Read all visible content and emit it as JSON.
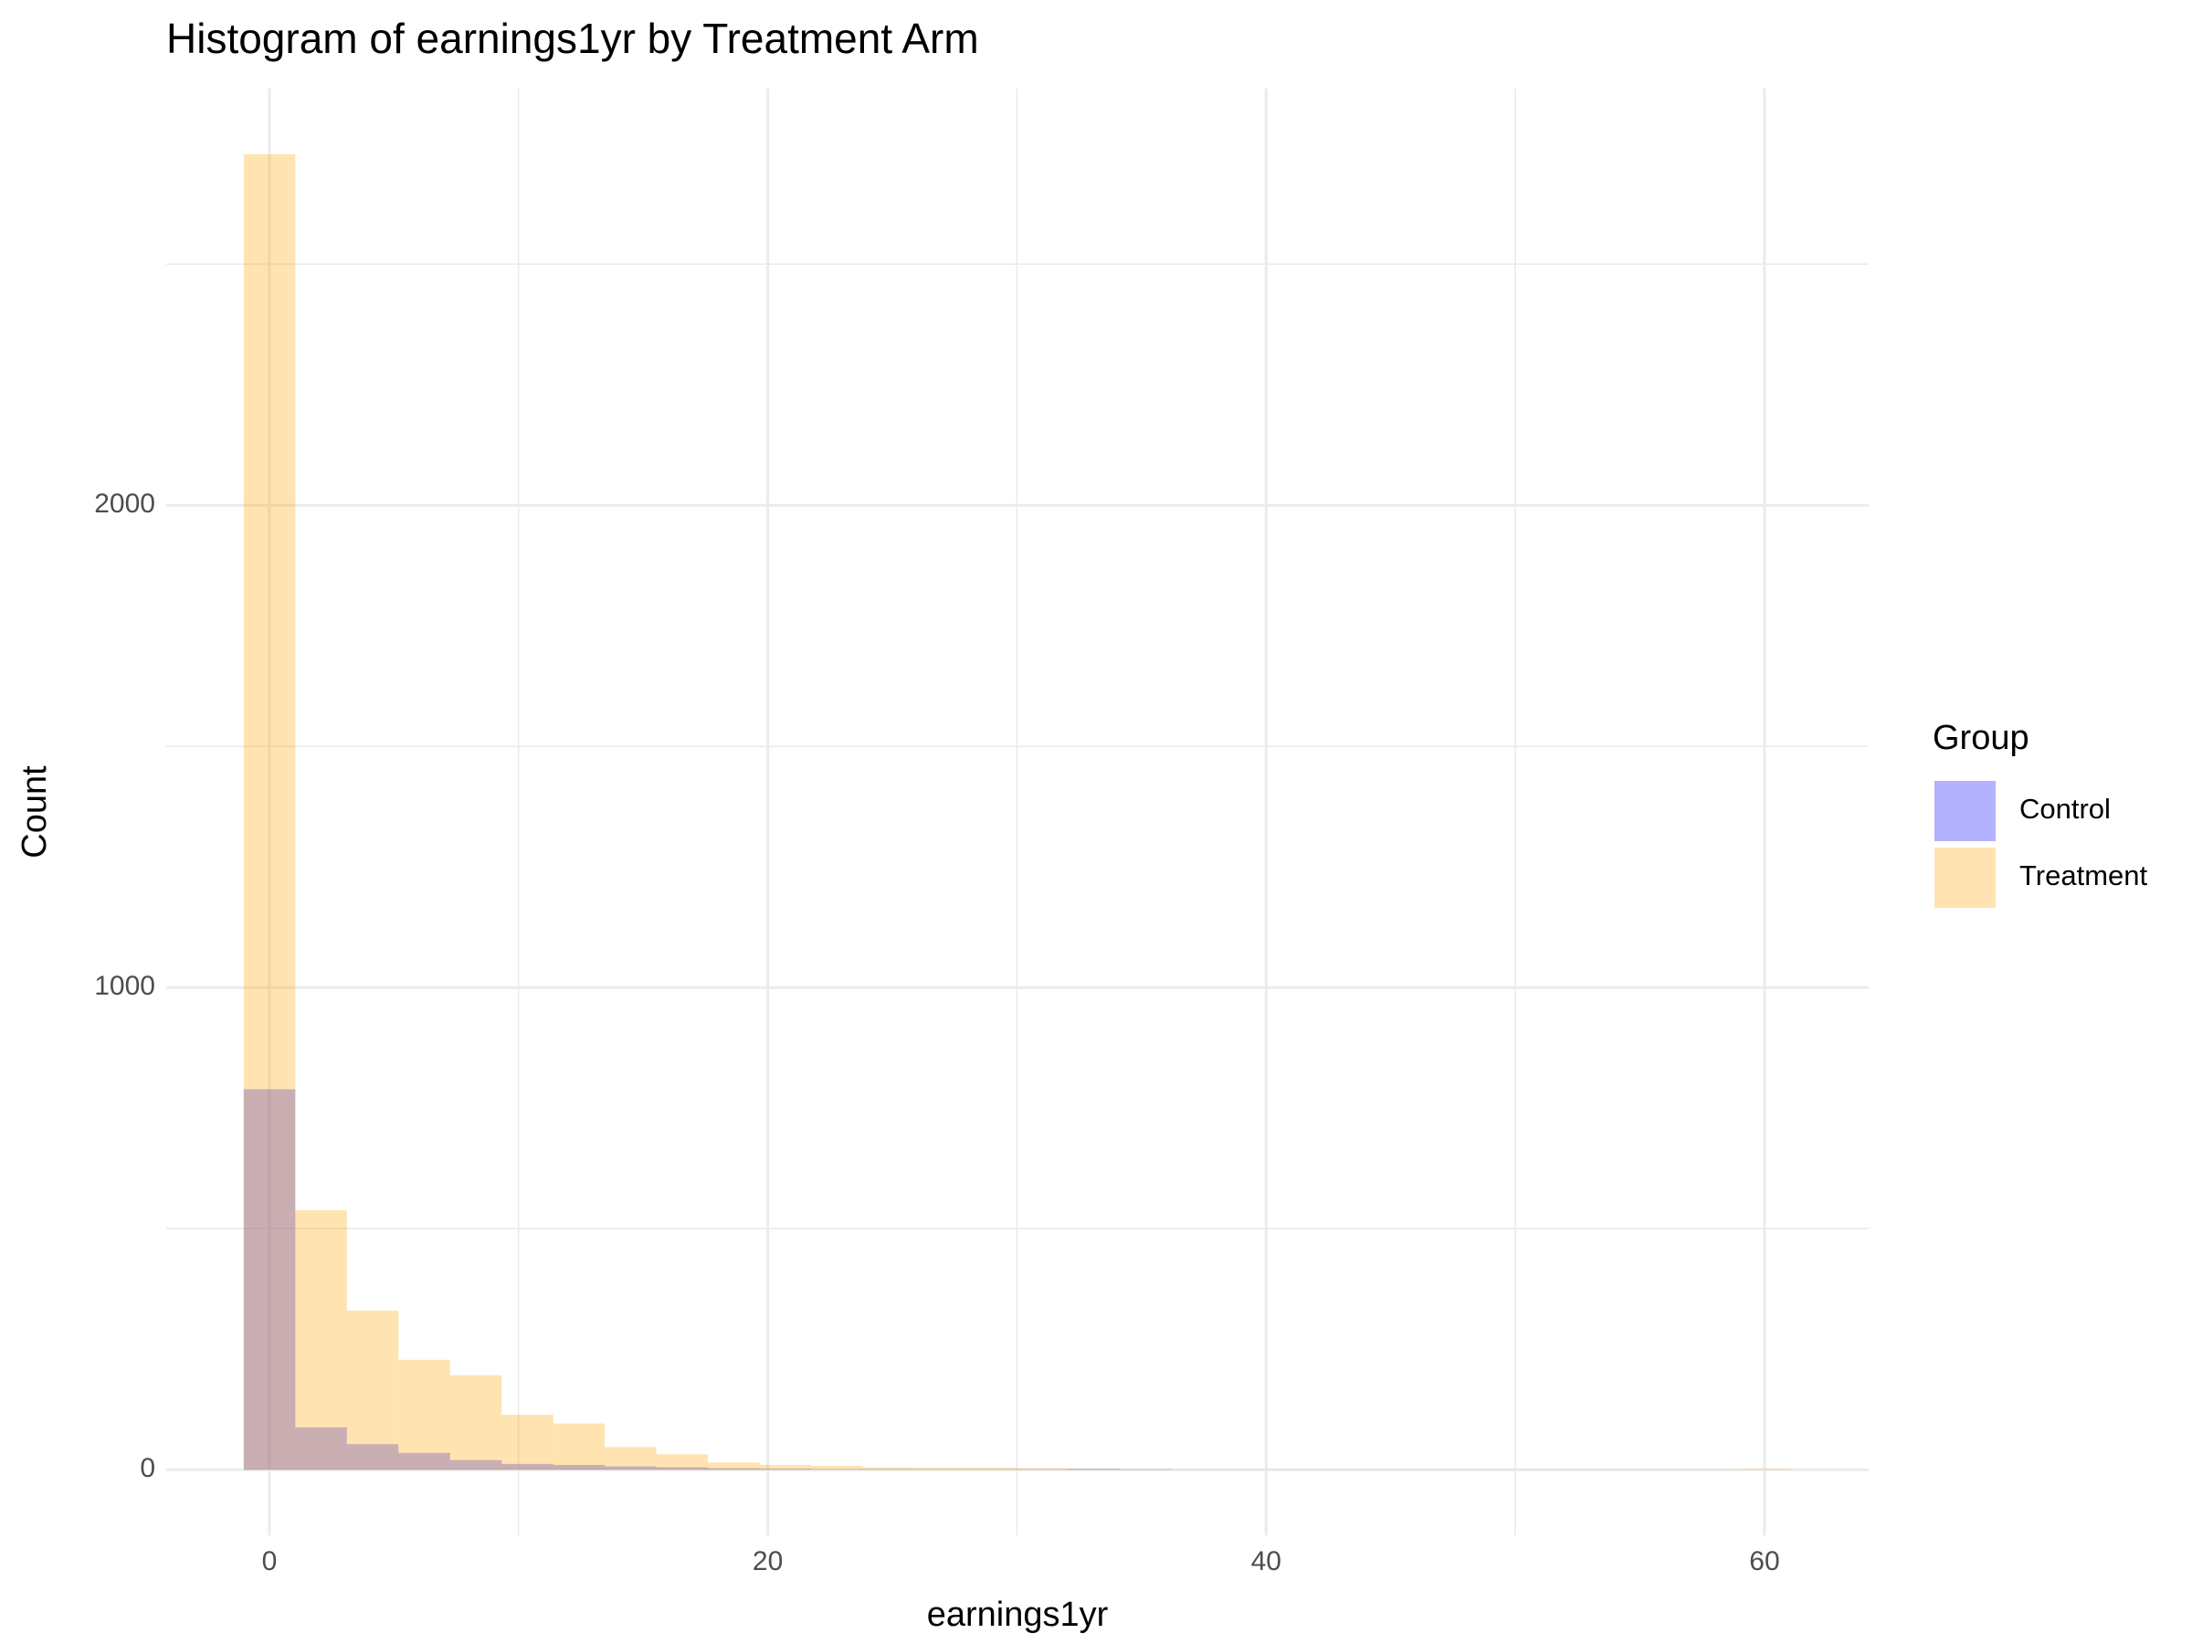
{
  "chart_data": {
    "type": "histogram",
    "title": "Histogram of earnings1yr by Treatment Arm",
    "x_label": "earnings1yr",
    "y_label": "Count",
    "legend_title": "Group",
    "legend_position": "right",
    "bins": [
      -1.03,
      1.04,
      3.11,
      5.18,
      7.25,
      9.32,
      11.39,
      13.46,
      15.53,
      17.6,
      19.67,
      21.74,
      23.81,
      25.88,
      27.95,
      30.02,
      32.09,
      34.16,
      36.23,
      38.3,
      40.37,
      42.44,
      44.51,
      46.58,
      48.65,
      50.72,
      52.79,
      54.86,
      56.93,
      59,
      61.07
    ],
    "series": [
      {
        "name": "Control",
        "color": "#0000ff",
        "opacity": 0.3,
        "values": [
          789,
          88,
          53,
          35,
          20,
          12,
          10,
          7,
          5,
          3,
          2,
          1,
          1,
          1,
          1,
          1,
          2,
          1,
          0,
          0,
          0,
          0,
          0,
          0,
          0,
          0,
          0,
          0,
          0,
          0
        ]
      },
      {
        "name": "Treatment",
        "color": "#ffa500",
        "opacity": 0.3,
        "values": [
          2728,
          538,
          330,
          228,
          196,
          114,
          96,
          47,
          32,
          15,
          10,
          8,
          5,
          4,
          4,
          3,
          2,
          1,
          1,
          1,
          1,
          1,
          1,
          1,
          1,
          1,
          1,
          1,
          1,
          2
        ]
      }
    ],
    "xlim": [
      -4.14,
      64.18
    ],
    "xticks": [
      0,
      20,
      40,
      60
    ],
    "x_minor_ticks": [
      10,
      30,
      50
    ],
    "ylim": [
      -136,
      2864
    ],
    "yticks": [
      0,
      1000,
      2000
    ],
    "y_minor_ticks": [
      500,
      1500,
      2500
    ],
    "grid": true
  }
}
